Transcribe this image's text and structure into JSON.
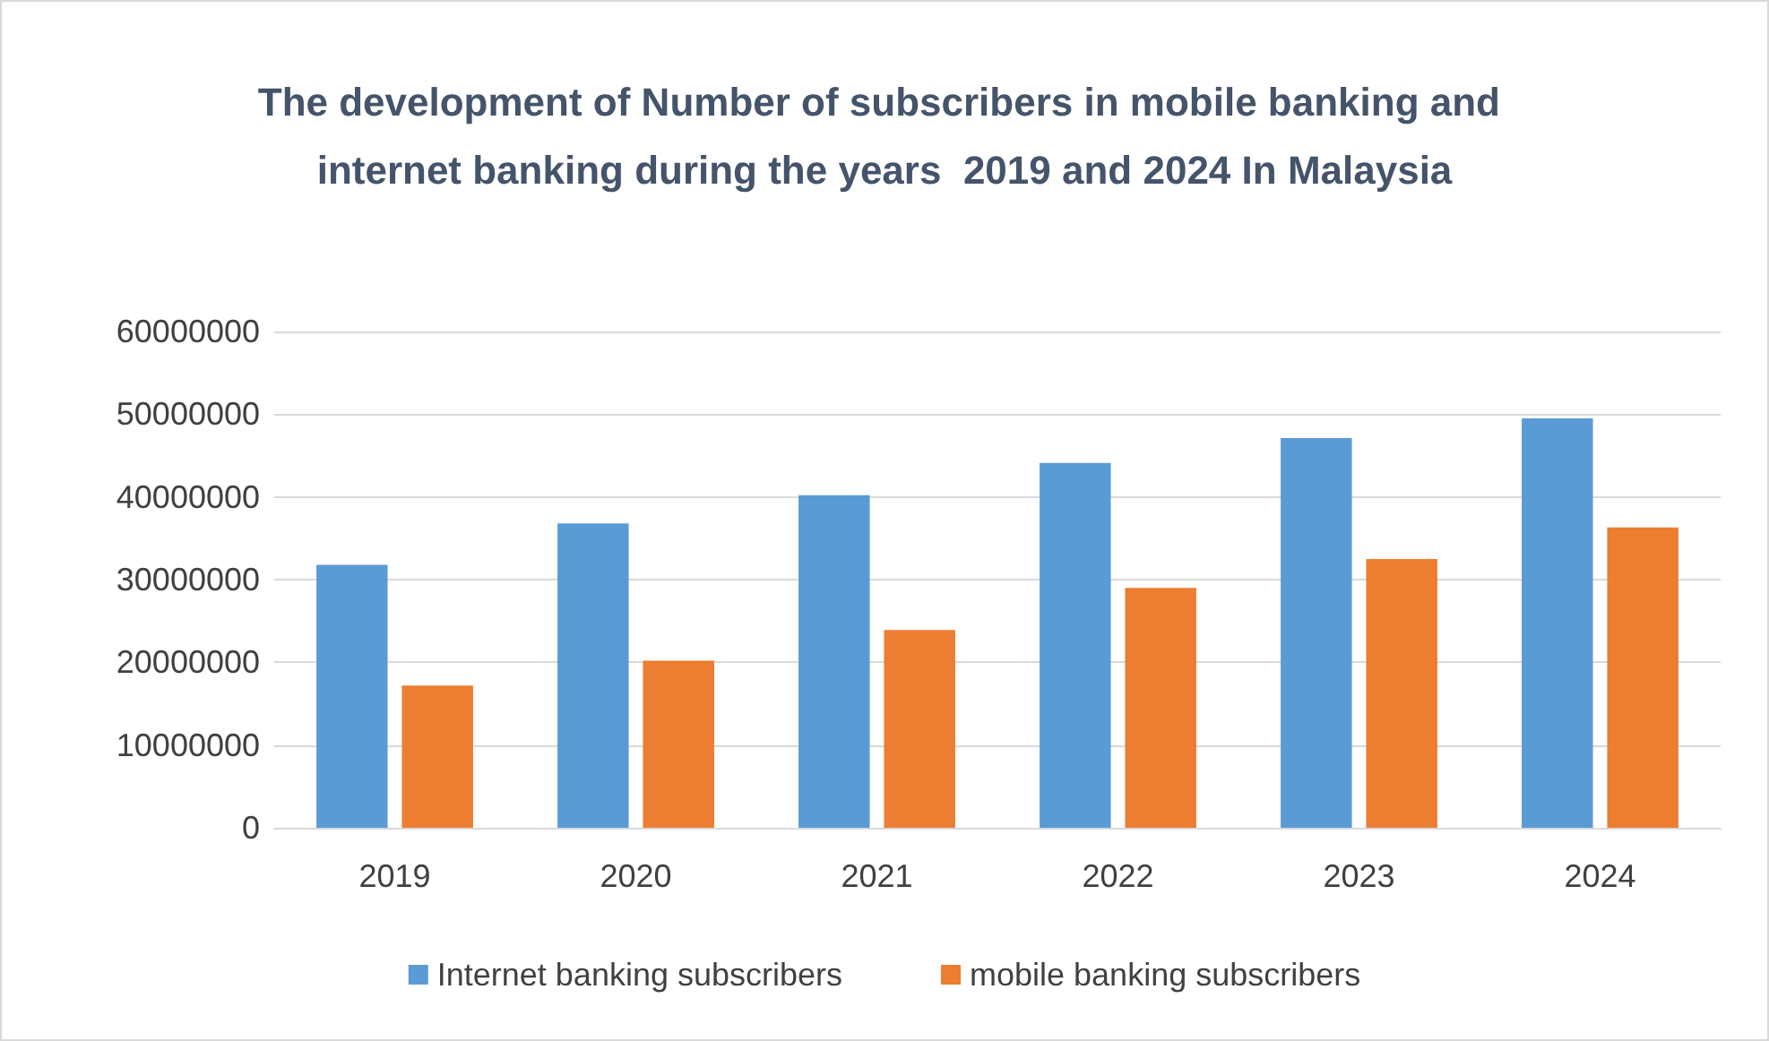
{
  "chart_data": {
    "type": "bar",
    "title": "The development of Number of subscribers in mobile banking and internet banking during the years  2019 and 2024 In Malaysia",
    "categories": [
      "2019",
      "2020",
      "2021",
      "2022",
      "2023",
      "2024"
    ],
    "series": [
      {
        "name": "Internet banking subscribers",
        "color": "#5b9bd5",
        "values": [
          31800000,
          36800000,
          40200000,
          44100000,
          47100000,
          49500000
        ]
      },
      {
        "name": "mobile banking subscribers",
        "color": "#ed7d31",
        "values": [
          17200000,
          20200000,
          23900000,
          29000000,
          32500000,
          36300000
        ]
      }
    ],
    "ylim": [
      0,
      60000000
    ],
    "yticks": [
      0,
      10000000,
      20000000,
      30000000,
      40000000,
      50000000,
      60000000
    ],
    "grid": "y",
    "legend": "bottom"
  }
}
